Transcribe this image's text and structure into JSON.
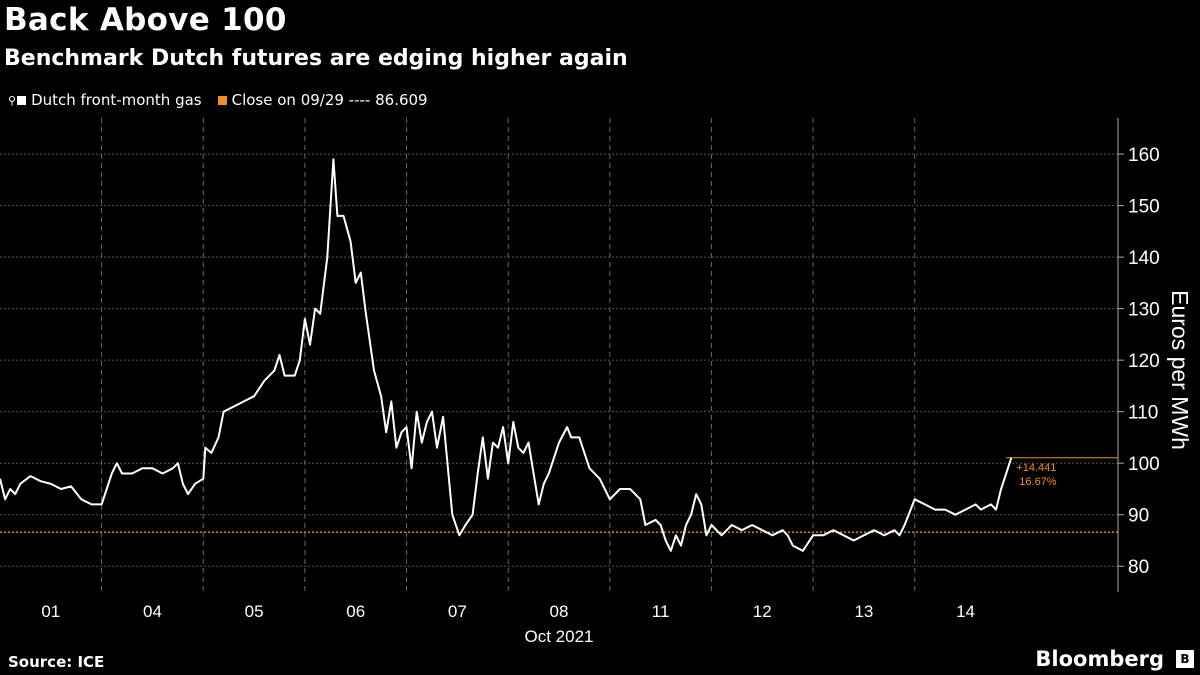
{
  "chart_data": {
    "type": "line",
    "title": "Back Above 100",
    "subtitle": "Benchmark Dutch futures are edging higher again",
    "ylabel": "Euros per MWh",
    "xlabel": "Oct 2021",
    "ylim": [
      75,
      167
    ],
    "yticks": [
      80,
      90,
      100,
      110,
      120,
      130,
      140,
      150,
      160
    ],
    "day_labels": [
      "01",
      "04",
      "05",
      "06",
      "07",
      "08",
      "11",
      "12",
      "13",
      "14"
    ],
    "legend_position": "top-left",
    "grid": true,
    "series": [
      {
        "name": "Dutch front-month gas",
        "color": "#ffffff",
        "values": [
          [
            0,
            97
          ],
          [
            0.05,
            93
          ],
          [
            0.1,
            95
          ],
          [
            0.15,
            94
          ],
          [
            0.2,
            96
          ],
          [
            0.3,
            97.5
          ],
          [
            0.4,
            96.5
          ],
          [
            0.5,
            96
          ],
          [
            0.6,
            95
          ],
          [
            0.7,
            95.5
          ],
          [
            0.8,
            93
          ],
          [
            0.9,
            92
          ],
          [
            1.0,
            92
          ],
          [
            1.05,
            95
          ],
          [
            1.1,
            98
          ],
          [
            1.15,
            100
          ],
          [
            1.2,
            98
          ],
          [
            1.3,
            98
          ],
          [
            1.4,
            99
          ],
          [
            1.5,
            99
          ],
          [
            1.6,
            98
          ],
          [
            1.7,
            99
          ],
          [
            1.75,
            100
          ],
          [
            1.8,
            96
          ],
          [
            1.85,
            94
          ],
          [
            1.92,
            96
          ],
          [
            2.0,
            97
          ],
          [
            2.02,
            103
          ],
          [
            2.08,
            102
          ],
          [
            2.15,
            105
          ],
          [
            2.2,
            110
          ],
          [
            2.3,
            111
          ],
          [
            2.4,
            112
          ],
          [
            2.5,
            113
          ],
          [
            2.6,
            116
          ],
          [
            2.7,
            118
          ],
          [
            2.75,
            121
          ],
          [
            2.8,
            117
          ],
          [
            2.9,
            117
          ],
          [
            2.95,
            120
          ],
          [
            3.0,
            128
          ],
          [
            3.05,
            123
          ],
          [
            3.1,
            130
          ],
          [
            3.15,
            129
          ],
          [
            3.22,
            140
          ],
          [
            3.28,
            159
          ],
          [
            3.32,
            148
          ],
          [
            3.38,
            148
          ],
          [
            3.45,
            143
          ],
          [
            3.5,
            135
          ],
          [
            3.55,
            137
          ],
          [
            3.6,
            129
          ],
          [
            3.68,
            118
          ],
          [
            3.75,
            113
          ],
          [
            3.8,
            106
          ],
          [
            3.85,
            112
          ],
          [
            3.9,
            103
          ],
          [
            3.95,
            106
          ],
          [
            4.0,
            107
          ],
          [
            4.05,
            99
          ],
          [
            4.1,
            110
          ],
          [
            4.15,
            104
          ],
          [
            4.2,
            108
          ],
          [
            4.25,
            110
          ],
          [
            4.3,
            103
          ],
          [
            4.36,
            109
          ],
          [
            4.45,
            90
          ],
          [
            4.52,
            86
          ],
          [
            4.58,
            88
          ],
          [
            4.65,
            90
          ],
          [
            4.7,
            98
          ],
          [
            4.75,
            105
          ],
          [
            4.8,
            97
          ],
          [
            4.85,
            104
          ],
          [
            4.9,
            103
          ],
          [
            4.95,
            107
          ],
          [
            5.0,
            100
          ],
          [
            5.05,
            108
          ],
          [
            5.1,
            103
          ],
          [
            5.15,
            102
          ],
          [
            5.2,
            104
          ],
          [
            5.3,
            92
          ],
          [
            5.35,
            96
          ],
          [
            5.4,
            98
          ],
          [
            5.5,
            104
          ],
          [
            5.58,
            107
          ],
          [
            5.62,
            105
          ],
          [
            5.7,
            105
          ],
          [
            5.8,
            99
          ],
          [
            5.9,
            97
          ],
          [
            6.0,
            93
          ],
          [
            6.1,
            95
          ],
          [
            6.2,
            95
          ],
          [
            6.3,
            93
          ],
          [
            6.35,
            88
          ],
          [
            6.45,
            89
          ],
          [
            6.5,
            88
          ],
          [
            6.55,
            85
          ],
          [
            6.6,
            83
          ],
          [
            6.65,
            86
          ],
          [
            6.7,
            84
          ],
          [
            6.75,
            88
          ],
          [
            6.8,
            90
          ],
          [
            6.85,
            94
          ],
          [
            6.9,
            92
          ],
          [
            6.95,
            86
          ],
          [
            7.0,
            88
          ],
          [
            7.1,
            86
          ],
          [
            7.2,
            88
          ],
          [
            7.3,
            87
          ],
          [
            7.4,
            88
          ],
          [
            7.5,
            87
          ],
          [
            7.6,
            86
          ],
          [
            7.7,
            87
          ],
          [
            7.75,
            86
          ],
          [
            7.8,
            84
          ],
          [
            7.9,
            83
          ],
          [
            8.0,
            86
          ],
          [
            8.1,
            86
          ],
          [
            8.2,
            87
          ],
          [
            8.3,
            86
          ],
          [
            8.4,
            85
          ],
          [
            8.5,
            86
          ],
          [
            8.6,
            87
          ],
          [
            8.7,
            86
          ],
          [
            8.8,
            87
          ],
          [
            8.85,
            86
          ],
          [
            8.9,
            88
          ],
          [
            9.0,
            93
          ],
          [
            9.1,
            92
          ],
          [
            9.2,
            91
          ],
          [
            9.3,
            91
          ],
          [
            9.4,
            90
          ],
          [
            9.5,
            91
          ],
          [
            9.6,
            92
          ],
          [
            9.65,
            91
          ],
          [
            9.75,
            92
          ],
          [
            9.8,
            91
          ],
          [
            9.85,
            95
          ],
          [
            9.9,
            98
          ],
          [
            9.95,
            101.05
          ]
        ]
      },
      {
        "name": "Close on 09/29",
        "label": "Close on 09/29 ---- 86.609",
        "color": "#f2901c",
        "value": 86.609
      }
    ],
    "annotations": {
      "change": "+14.441",
      "change_pct": "16.67%",
      "last_value": 101.05
    }
  },
  "footer": {
    "source": "Source: ICE",
    "brand": "Bloomberg"
  }
}
